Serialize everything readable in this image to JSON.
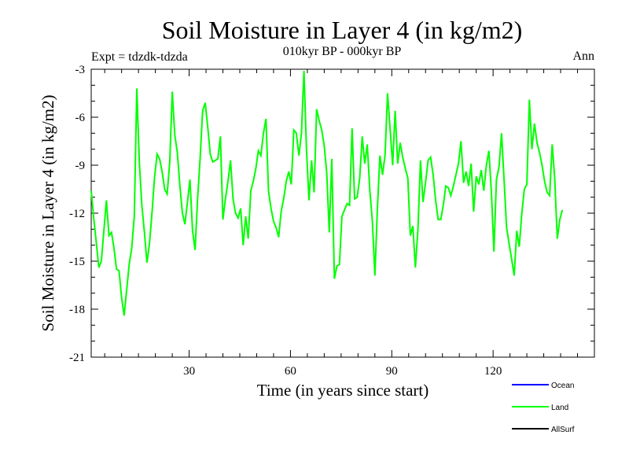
{
  "title": "Soil Moisture in Layer 4 (in kg/m2)",
  "subtitle": "010kyr BP - 000kyr BP",
  "expt_label": "Expt = tdzdk-tdzda",
  "season_label": "Ann",
  "colors": {
    "ocean": "#0000ff",
    "land": "#00ff00",
    "allsurf": "#000000",
    "axis": "#000000"
  },
  "chart_data": {
    "type": "line",
    "title": "Soil Moisture in Layer 4 (in kg/m2)",
    "xlabel": "Time (in years since start)",
    "ylabel": "Soil Moisture in Layer 4 (in kg/m2)",
    "xlim": [
      1,
      150
    ],
    "ylim": [
      -21,
      -3
    ],
    "x_ticks": [
      30,
      60,
      90,
      120
    ],
    "x_tick_labels": [
      "30",
      "60",
      "90",
      "120"
    ],
    "y_ticks": [
      -3,
      -6,
      -9,
      -12,
      -15,
      -18,
      -21
    ],
    "y_tick_labels": [
      "-3",
      "-6",
      "-9",
      "-12",
      "-15",
      "-18",
      "-21"
    ],
    "legend": [
      {
        "name": "Ocean",
        "color": "#0000ff"
      },
      {
        "name": "Land",
        "color": "#00ff00"
      },
      {
        "name": "AllSurf",
        "color": "#000000"
      }
    ],
    "series": [
      {
        "name": "Land",
        "color": "#00ff00",
        "x_start": 1,
        "values": [
          -10.6,
          -12.3,
          -13.8,
          -15.4,
          -15.0,
          -13.1,
          -11.2,
          -13.4,
          -13.2,
          -14.2,
          -15.5,
          -15.6,
          -17.3,
          -18.4,
          -16.8,
          -15.2,
          -14.2,
          -12.2,
          -4.2,
          -8.8,
          -11.5,
          -13.2,
          -15.1,
          -13.9,
          -12.0,
          -9.8,
          -8.3,
          -8.6,
          -9.4,
          -10.5,
          -10.8,
          -8.8,
          -4.4,
          -7.1,
          -8.2,
          -10.3,
          -12.0,
          -12.7,
          -11.3,
          -9.9,
          -13.1,
          -14.3,
          -11.1,
          -8.6,
          -5.6,
          -5.1,
          -6.6,
          -8.3,
          -8.8,
          -8.7,
          -8.6,
          -7.2,
          -12.4,
          -11.1,
          -10.0,
          -8.7,
          -11.1,
          -12.0,
          -12.3,
          -11.7,
          -14.0,
          -12.2,
          -13.6,
          -10.6,
          -10.0,
          -9.2,
          -8.1,
          -8.4,
          -7.0,
          -6.1,
          -10.6,
          -11.7,
          -12.5,
          -12.9,
          -13.5,
          -11.9,
          -11.1,
          -10.0,
          -9.4,
          -10.2,
          -6.8,
          -7.0,
          -8.4,
          -7.0,
          -3.1,
          -8.0,
          -11.2,
          -8.7,
          -10.7,
          -5.5,
          -6.2,
          -6.8,
          -7.8,
          -9.5,
          -13.2,
          -8.6,
          -16.1,
          -15.3,
          -15.2,
          -12.2,
          -11.8,
          -11.4,
          -11.5,
          -6.7,
          -11.1,
          -11.0,
          -9.8,
          -7.2,
          -8.9,
          -7.7,
          -10.6,
          -12.5,
          -15.9,
          -11.7,
          -8.4,
          -9.6,
          -8.4,
          -4.5,
          -6.7,
          -9.0,
          -5.6,
          -8.9,
          -7.6,
          -8.5,
          -9.2,
          -9.8,
          -13.4,
          -12.8,
          -15.4,
          -13.0,
          -8.7,
          -11.3,
          -10.1,
          -8.7,
          -8.5,
          -9.6,
          -11.2,
          -12.4,
          -12.4,
          -11.5,
          -10.3,
          -10.4,
          -10.9,
          -10.3,
          -9.6,
          -8.9,
          -7.5,
          -10.1,
          -9.4,
          -10.3,
          -8.9,
          -11.9,
          -9.7,
          -10.2,
          -9.3,
          -10.6,
          -9.0,
          -8.1,
          -10.7,
          -14.4,
          -9.9,
          -9.1,
          -7.0,
          -9.9,
          -12.9,
          -13.9,
          -14.9,
          -15.9,
          -13.1,
          -14.1,
          -12.0,
          -10.5,
          -10.2,
          -4.9,
          -8.0,
          -6.4,
          -7.6,
          -8.2,
          -9.0,
          -10.0,
          -10.7,
          -10.9,
          -7.7,
          -9.8,
          -13.6,
          -12.4,
          -11.8
        ],
        "x_step": 0.75
      },
      {
        "name": "Ocean",
        "color": "#0000ff",
        "values": []
      },
      {
        "name": "AllSurf",
        "color": "#000000",
        "values": []
      }
    ]
  }
}
